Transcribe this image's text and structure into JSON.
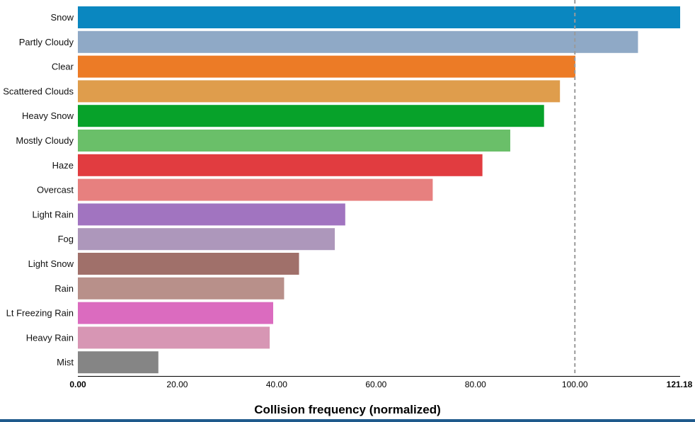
{
  "chart_data": {
    "type": "bar",
    "orientation": "horizontal",
    "categories": [
      "Snow",
      "Partly Cloudy",
      "Clear",
      "Scattered Clouds",
      "Heavy Snow",
      "Mostly Cloudy",
      "Haze",
      "Overcast",
      "Light Rain",
      "Fog",
      "Light Snow",
      "Rain",
      "Lt Freezing Rain",
      "Heavy Rain",
      "Mist"
    ],
    "values": [
      121.18,
      112.7,
      100.1,
      97.0,
      93.8,
      87.0,
      81.4,
      71.4,
      53.8,
      51.7,
      44.5,
      41.5,
      39.3,
      38.6,
      16.2
    ],
    "colors": [
      "#0a87c0",
      "#8fa9c6",
      "#ec7b26",
      "#df9d4c",
      "#07a22a",
      "#6abf69",
      "#e13c40",
      "#e7807f",
      "#a174c0",
      "#ad97bb",
      "#a0706a",
      "#b8908a",
      "#db6bbf",
      "#d796b4",
      "#858585"
    ],
    "xlim": [
      0,
      121.18
    ],
    "xticks": [
      "0.00",
      "20.00",
      "40.00",
      "60.00",
      "80.00",
      "100.00",
      "121.18"
    ],
    "xtick_values": [
      0,
      20,
      40,
      60,
      80,
      100,
      121.18
    ],
    "reference_line": 100,
    "xlabel": "Collision frequency (normalized)",
    "grid": false
  }
}
